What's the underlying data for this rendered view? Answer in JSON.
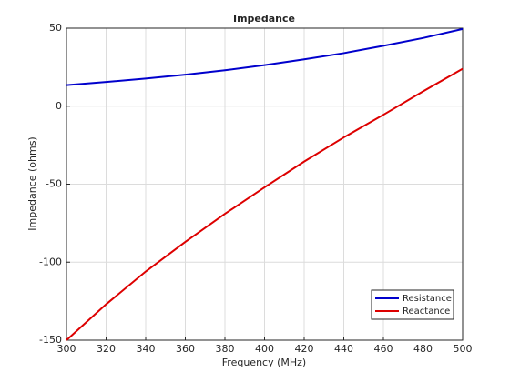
{
  "chart_data": {
    "type": "line",
    "title": "Impedance",
    "x_label": "Frequency (MHz)",
    "y_label": "Impedance (ohms)",
    "x": [
      300,
      320,
      340,
      360,
      380,
      400,
      420,
      440,
      460,
      480,
      500
    ],
    "series": [
      {
        "name": "Resistance",
        "color": "#0000cc",
        "values": [
          13.5,
          15.5,
          17.7,
          20.2,
          23,
          26.3,
          30,
          34,
          38.7,
          43.7,
          49.5
        ]
      },
      {
        "name": "Reactance",
        "color": "#dd0000",
        "values": [
          -150,
          -127,
          -106,
          -87,
          -69,
          -52,
          -35.5,
          -20,
          -5.5,
          9.5,
          24
        ]
      }
    ],
    "xlim": [
      300,
      500
    ],
    "xticks": [
      300,
      320,
      340,
      360,
      380,
      400,
      420,
      440,
      460,
      480,
      500
    ],
    "ylim": [
      -150,
      50
    ],
    "yticks": [
      -150,
      -100,
      -50,
      0,
      50
    ],
    "grid": true,
    "legend": "lower-right"
  }
}
